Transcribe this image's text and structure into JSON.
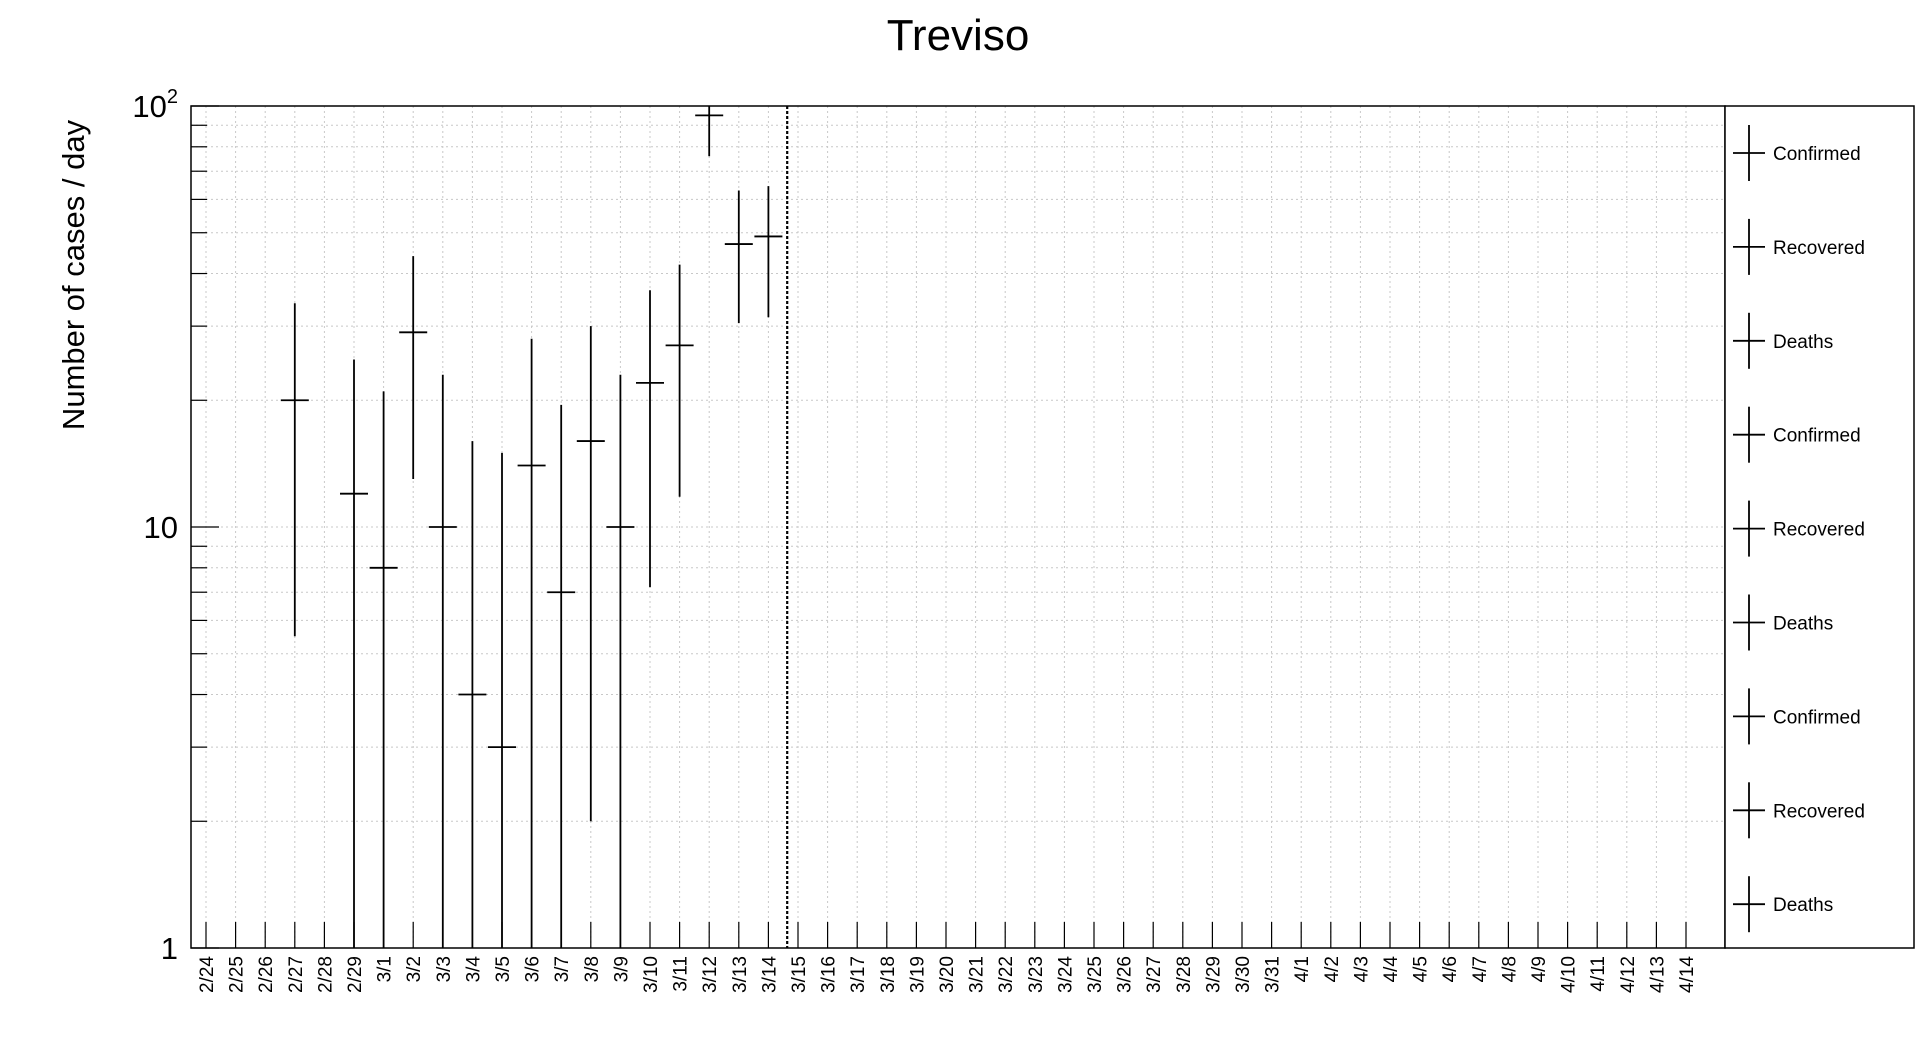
{
  "chart_data": {
    "type": "scatter",
    "title": "Treviso",
    "ylabel": "Number of cases / day",
    "xlabel": "",
    "yscale": "log",
    "ylim": [
      1,
      100
    ],
    "yticks": [
      {
        "value": 1,
        "label": "1",
        "exp": ""
      },
      {
        "value": 10,
        "label": "10",
        "exp": ""
      },
      {
        "value": 100,
        "label": "10",
        "exp": "2"
      }
    ],
    "grid": true,
    "categories": [
      "2/24",
      "2/25",
      "2/26",
      "2/27",
      "2/28",
      "2/29",
      "3/1",
      "3/2",
      "3/3",
      "3/4",
      "3/5",
      "3/6",
      "3/7",
      "3/8",
      "3/9",
      "3/10",
      "3/11",
      "3/12",
      "3/13",
      "3/14",
      "3/15",
      "3/16",
      "3/17",
      "3/18",
      "3/19",
      "3/20",
      "3/21",
      "3/22",
      "3/23",
      "3/24",
      "3/25",
      "3/26",
      "3/27",
      "3/28",
      "3/29",
      "3/30",
      "3/31",
      "4/1",
      "4/2",
      "4/3",
      "4/4",
      "4/5",
      "4/6",
      "4/7",
      "4/8",
      "4/9",
      "4/10",
      "4/11",
      "4/12",
      "4/13",
      "4/14"
    ],
    "marker_line_date": "3/15",
    "series": [
      {
        "name": "Confirmed",
        "points": [
          {
            "x": "2/27",
            "y": 20,
            "ylow": 5.5,
            "yhigh": 34
          },
          {
            "x": "2/29",
            "y": 12,
            "ylow": 1,
            "yhigh": 25
          },
          {
            "x": "3/1",
            "y": 8,
            "ylow": 1,
            "yhigh": 21
          },
          {
            "x": "3/2",
            "y": 29,
            "ylow": 13,
            "yhigh": 44
          },
          {
            "x": "3/3",
            "y": 10,
            "ylow": 1,
            "yhigh": 23
          },
          {
            "x": "3/4",
            "y": 4,
            "ylow": 1,
            "yhigh": 16
          },
          {
            "x": "3/5",
            "y": 3,
            "ylow": 1,
            "yhigh": 15
          },
          {
            "x": "3/6",
            "y": 14,
            "ylow": 1,
            "yhigh": 28
          },
          {
            "x": "3/7",
            "y": 7,
            "ylow": 1,
            "yhigh": 19.5
          },
          {
            "x": "3/8",
            "y": 16,
            "ylow": 2,
            "yhigh": 30
          },
          {
            "x": "3/9",
            "y": 10,
            "ylow": 1,
            "yhigh": 23
          },
          {
            "x": "3/10",
            "y": 22,
            "ylow": 7.2,
            "yhigh": 36.5
          },
          {
            "x": "3/11",
            "y": 27,
            "ylow": 11.8,
            "yhigh": 42
          },
          {
            "x": "3/12",
            "y": 95,
            "ylow": 76,
            "yhigh": 100
          },
          {
            "x": "3/13",
            "y": 47,
            "ylow": 30.5,
            "yhigh": 63
          },
          {
            "x": "3/14",
            "y": 49,
            "ylow": 31.5,
            "yhigh": 64.5
          }
        ]
      }
    ],
    "legend": {
      "placement": "right",
      "entries": [
        "Confirmed",
        "Recovered",
        "Deaths",
        "Confirmed",
        "Recovered",
        "Deaths",
        "Confirmed",
        "Recovered",
        "Deaths"
      ]
    }
  }
}
